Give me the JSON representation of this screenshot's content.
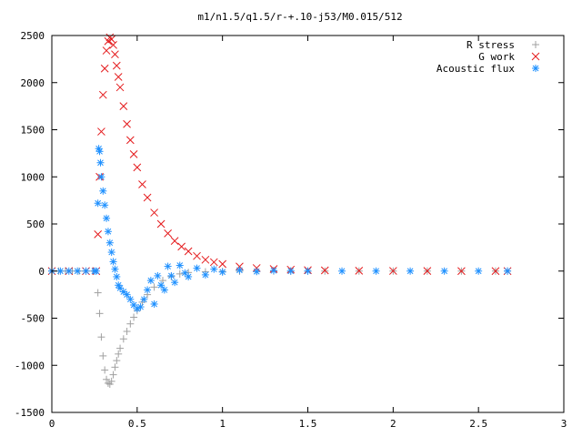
{
  "chart_data": {
    "type": "scatter",
    "title": "m1/n1.5/q1.5/r-+.10-j53/M0.015/512",
    "xlabel": "",
    "ylabel": "",
    "xlim": [
      0,
      3
    ],
    "ylim": [
      -1500,
      2500
    ],
    "x_ticks": [
      0,
      0.5,
      1,
      1.5,
      2,
      2.5,
      3
    ],
    "x_tick_labels": [
      "0",
      "0.5",
      "1",
      "1.5",
      "2",
      "2.5",
      "3"
    ],
    "y_ticks": [
      -1500,
      -1000,
      -500,
      0,
      500,
      1000,
      1500,
      2000,
      2500
    ],
    "y_tick_labels": [
      "-1500",
      "-1000",
      "-500",
      "0",
      "500",
      "1000",
      "1500",
      "2000",
      "2500"
    ],
    "grid": false,
    "legend_position": "top-right",
    "series": [
      {
        "name": "R stress",
        "marker": "plus",
        "color": "#a0a0a0",
        "x": [
          0.0,
          0.04,
          0.08,
          0.12,
          0.16,
          0.2,
          0.24,
          0.27,
          0.28,
          0.29,
          0.3,
          0.31,
          0.32,
          0.33,
          0.34,
          0.35,
          0.36,
          0.37,
          0.38,
          0.39,
          0.4,
          0.42,
          0.44,
          0.46,
          0.48,
          0.5,
          0.53,
          0.56,
          0.6,
          0.65,
          0.7,
          0.75,
          0.8,
          0.9,
          1.0,
          1.1,
          1.2,
          1.3,
          1.4,
          1.5,
          1.6,
          1.8,
          2.0,
          2.2,
          2.4,
          2.6,
          2.67
        ],
        "y": [
          0,
          0,
          0,
          0,
          0,
          0,
          0,
          -230,
          -450,
          -700,
          -900,
          -1050,
          -1150,
          -1190,
          -1200,
          -1170,
          -1100,
          -1020,
          -950,
          -880,
          -820,
          -720,
          -640,
          -560,
          -490,
          -420,
          -330,
          -250,
          -170,
          -100,
          -60,
          -30,
          -15,
          -8,
          -4,
          -2,
          0,
          0,
          0,
          0,
          0,
          0,
          0,
          0,
          0,
          0,
          0
        ]
      },
      {
        "name": "G work",
        "marker": "cross",
        "color": "#e41a1c",
        "x": [
          0.0,
          0.1,
          0.2,
          0.26,
          0.27,
          0.28,
          0.29,
          0.3,
          0.31,
          0.32,
          0.33,
          0.34,
          0.35,
          0.36,
          0.37,
          0.38,
          0.39,
          0.4,
          0.42,
          0.44,
          0.46,
          0.48,
          0.5,
          0.53,
          0.56,
          0.6,
          0.64,
          0.68,
          0.72,
          0.76,
          0.8,
          0.85,
          0.9,
          0.95,
          1.0,
          1.1,
          1.2,
          1.3,
          1.4,
          1.5,
          1.6,
          1.8,
          2.0,
          2.2,
          2.4,
          2.6,
          2.67
        ],
        "y": [
          0,
          0,
          0,
          0,
          390,
          1000,
          1480,
          1870,
          2150,
          2340,
          2440,
          2480,
          2460,
          2400,
          2300,
          2180,
          2060,
          1950,
          1750,
          1560,
          1390,
          1240,
          1100,
          920,
          780,
          620,
          500,
          400,
          320,
          260,
          210,
          160,
          120,
          95,
          75,
          48,
          32,
          22,
          15,
          10,
          7,
          4,
          2,
          1,
          0,
          0,
          0
        ]
      },
      {
        "name": "Acoustic flux",
        "marker": "star",
        "color": "#1e90ff",
        "x": [
          0.0,
          0.05,
          0.1,
          0.15,
          0.2,
          0.25,
          0.26,
          0.27,
          0.275,
          0.28,
          0.285,
          0.29,
          0.3,
          0.31,
          0.32,
          0.33,
          0.34,
          0.35,
          0.36,
          0.37,
          0.38,
          0.39,
          0.4,
          0.42,
          0.44,
          0.46,
          0.48,
          0.5,
          0.52,
          0.54,
          0.56,
          0.58,
          0.6,
          0.62,
          0.64,
          0.66,
          0.68,
          0.7,
          0.72,
          0.75,
          0.78,
          0.8,
          0.85,
          0.9,
          0.95,
          1.0,
          1.1,
          1.2,
          1.3,
          1.4,
          1.5,
          1.7,
          1.9,
          2.1,
          2.3,
          2.5,
          2.67
        ],
        "y": [
          0,
          0,
          0,
          0,
          0,
          0,
          0,
          720,
          1300,
          1270,
          1150,
          1000,
          850,
          700,
          560,
          420,
          300,
          200,
          100,
          20,
          -60,
          -150,
          -180,
          -220,
          -250,
          -300,
          -360,
          -400,
          -380,
          -300,
          -200,
          -100,
          -350,
          -50,
          -150,
          -200,
          50,
          -50,
          -120,
          60,
          -20,
          -60,
          30,
          -40,
          20,
          -10,
          10,
          -5,
          5,
          0,
          0,
          0,
          0,
          0,
          0,
          0,
          0
        ]
      }
    ]
  }
}
